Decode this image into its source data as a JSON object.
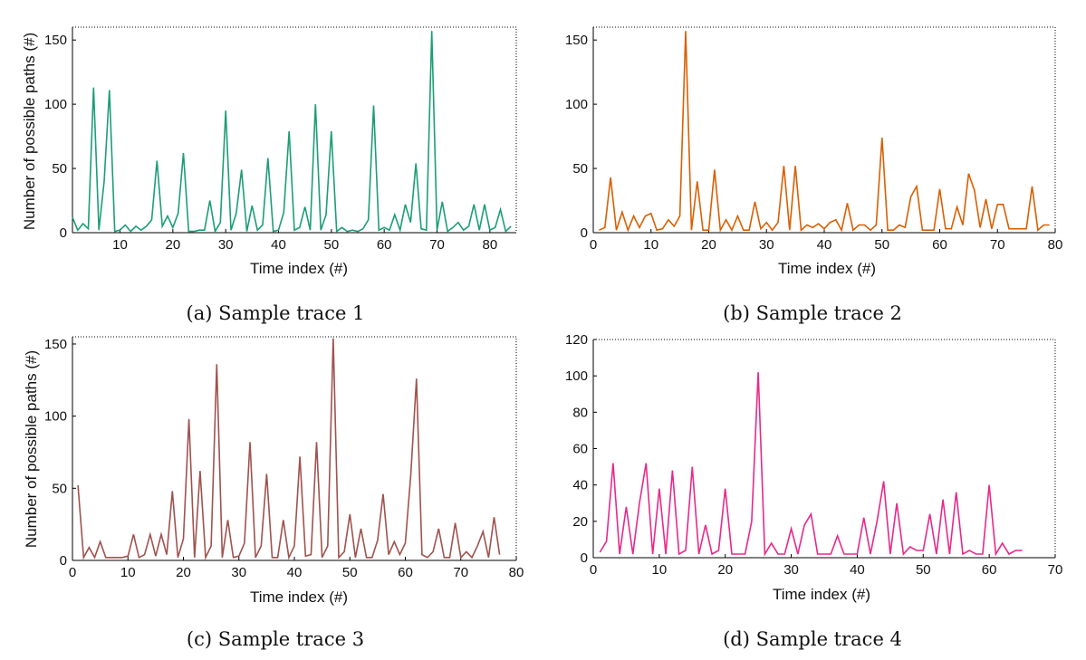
{
  "chart_data": [
    {
      "type": "line",
      "caption": "(a) Sample trace 1",
      "xlabel": "Time index (#)",
      "ylabel": "Number of possible paths (#)",
      "xlim": [
        1,
        85
      ],
      "ylim": [
        0,
        160
      ],
      "xticks": [
        10,
        20,
        30,
        40,
        50,
        60,
        70,
        80
      ],
      "yticks": [
        0,
        50,
        100,
        150
      ],
      "color": "#1b9e77",
      "x": [
        1,
        2,
        3,
        4,
        5,
        6,
        7,
        8,
        9,
        10,
        11,
        12,
        13,
        14,
        15,
        16,
        17,
        18,
        19,
        20,
        21,
        22,
        23,
        24,
        25,
        26,
        27,
        28,
        29,
        30,
        31,
        32,
        33,
        34,
        35,
        36,
        37,
        38,
        39,
        40,
        41,
        42,
        43,
        44,
        45,
        46,
        47,
        48,
        49,
        50,
        51,
        52,
        53,
        54,
        55,
        56,
        57,
        58,
        59,
        60,
        61,
        62,
        63,
        64,
        65,
        66,
        67,
        68,
        69,
        70,
        71,
        72,
        73,
        74,
        75,
        76,
        77,
        78,
        79,
        80,
        81,
        82,
        83,
        84
      ],
      "y": [
        12,
        2,
        7,
        3,
        113,
        2,
        40,
        111,
        1,
        2,
        6,
        1,
        5,
        2,
        5,
        10,
        56,
        5,
        13,
        4,
        15,
        62,
        1,
        1,
        2,
        2,
        25,
        1,
        8,
        95,
        2,
        15,
        49,
        1,
        21,
        2,
        6,
        58,
        1,
        2,
        16,
        79,
        2,
        4,
        20,
        2,
        100,
        2,
        14,
        79,
        1,
        4,
        1,
        2,
        1,
        3,
        10,
        99,
        2,
        4,
        2,
        14,
        2,
        22,
        8,
        54,
        3,
        2,
        157,
        2,
        24,
        1,
        4,
        8,
        2,
        5,
        22,
        2,
        22,
        2,
        4,
        18,
        1,
        5
      ]
    },
    {
      "type": "line",
      "caption": "(b) Sample trace 2",
      "xlabel": "Time index (#)",
      "ylabel": "",
      "xlim": [
        0,
        80
      ],
      "ylim": [
        0,
        160
      ],
      "xticks": [
        0,
        10,
        20,
        30,
        40,
        50,
        60,
        70,
        80
      ],
      "yticks": [
        0,
        50,
        100,
        150
      ],
      "color": "#d95f02",
      "x": [
        1,
        2,
        3,
        4,
        5,
        6,
        7,
        8,
        9,
        10,
        11,
        12,
        13,
        14,
        15,
        16,
        17,
        18,
        19,
        20,
        21,
        22,
        23,
        24,
        25,
        26,
        27,
        28,
        29,
        30,
        31,
        32,
        33,
        34,
        35,
        36,
        37,
        38,
        39,
        40,
        41,
        42,
        43,
        44,
        45,
        46,
        47,
        48,
        49,
        50,
        51,
        52,
        53,
        54,
        55,
        56,
        57,
        58,
        59,
        60,
        61,
        62,
        63,
        64,
        65,
        66,
        67,
        68,
        69,
        70,
        71,
        72,
        73,
        74,
        75,
        76,
        77,
        78,
        79
      ],
      "y": [
        2,
        4,
        43,
        2,
        16,
        2,
        13,
        4,
        13,
        15,
        2,
        3,
        10,
        5,
        13,
        157,
        2,
        40,
        2,
        2,
        49,
        2,
        10,
        2,
        13,
        2,
        2,
        24,
        3,
        8,
        2,
        8,
        52,
        2,
        52,
        2,
        6,
        4,
        7,
        3,
        8,
        10,
        2,
        23,
        2,
        6,
        6,
        2,
        6,
        74,
        2,
        2,
        6,
        4,
        28,
        36,
        2,
        2,
        2,
        34,
        3,
        3,
        20,
        6,
        46,
        33,
        4,
        26,
        3,
        22,
        22,
        3,
        3,
        3,
        3,
        36,
        2,
        6,
        6
      ]
    },
    {
      "type": "line",
      "caption": "(c) Sample trace 3",
      "xlabel": "Time index (#)",
      "ylabel": "Number of possible paths (#)",
      "xlim": [
        0,
        80
      ],
      "ylim": [
        0,
        155
      ],
      "xticks": [
        0,
        10,
        20,
        30,
        40,
        50,
        60,
        70,
        80
      ],
      "yticks": [
        0,
        50,
        100,
        150
      ],
      "color": "#a0524d",
      "x": [
        1,
        2,
        3,
        4,
        5,
        6,
        7,
        8,
        9,
        10,
        11,
        12,
        13,
        14,
        15,
        16,
        17,
        18,
        19,
        20,
        21,
        22,
        23,
        24,
        25,
        26,
        27,
        28,
        29,
        30,
        31,
        32,
        33,
        34,
        35,
        36,
        37,
        38,
        39,
        40,
        41,
        42,
        43,
        44,
        45,
        46,
        47,
        48,
        49,
        50,
        51,
        52,
        53,
        54,
        55,
        56,
        57,
        58,
        59,
        60,
        61,
        62,
        63,
        64,
        65,
        66,
        67,
        68,
        69,
        70,
        71,
        72,
        73,
        74,
        75,
        76,
        77
      ],
      "y": [
        52,
        2,
        9,
        2,
        13,
        2,
        2,
        2,
        2,
        3,
        18,
        2,
        4,
        18,
        3,
        18,
        4,
        48,
        2,
        15,
        98,
        2,
        62,
        2,
        10,
        136,
        2,
        28,
        2,
        3,
        12,
        82,
        2,
        10,
        60,
        2,
        2,
        28,
        2,
        10,
        72,
        3,
        4,
        82,
        2,
        10,
        154,
        2,
        6,
        32,
        2,
        22,
        2,
        2,
        14,
        46,
        4,
        13,
        4,
        12,
        60,
        126,
        4,
        2,
        6,
        22,
        2,
        2,
        26,
        2,
        6,
        2,
        10,
        20,
        2,
        30,
        4
      ]
    },
    {
      "type": "line",
      "caption": "(d) Sample trace 4",
      "xlabel": "Time index (#)",
      "ylabel": "",
      "xlim": [
        0,
        70
      ],
      "ylim": [
        0,
        120
      ],
      "xticks": [
        0,
        10,
        20,
        30,
        40,
        50,
        60,
        70
      ],
      "yticks": [
        0,
        20,
        40,
        60,
        80,
        100,
        120
      ],
      "color": "#e7298a",
      "x": [
        1,
        2,
        3,
        4,
        5,
        6,
        7,
        8,
        9,
        10,
        11,
        12,
        13,
        14,
        15,
        16,
        17,
        18,
        19,
        20,
        21,
        22,
        23,
        24,
        25,
        26,
        27,
        28,
        29,
        30,
        31,
        32,
        33,
        34,
        35,
        36,
        37,
        38,
        39,
        40,
        41,
        42,
        43,
        44,
        45,
        46,
        47,
        48,
        49,
        50,
        51,
        52,
        53,
        54,
        55,
        56,
        57,
        58,
        59,
        60,
        61,
        62,
        63,
        64,
        65
      ],
      "y": [
        3,
        9,
        52,
        2,
        28,
        2,
        30,
        52,
        2,
        38,
        2,
        48,
        2,
        4,
        50,
        2,
        18,
        2,
        4,
        38,
        2,
        2,
        2,
        20,
        102,
        2,
        8,
        2,
        2,
        16,
        2,
        18,
        24,
        2,
        2,
        2,
        12,
        2,
        2,
        2,
        22,
        2,
        20,
        42,
        2,
        30,
        2,
        6,
        4,
        4,
        24,
        2,
        32,
        2,
        36,
        2,
        4,
        2,
        2,
        40,
        2,
        8,
        2,
        4,
        4
      ]
    }
  ]
}
